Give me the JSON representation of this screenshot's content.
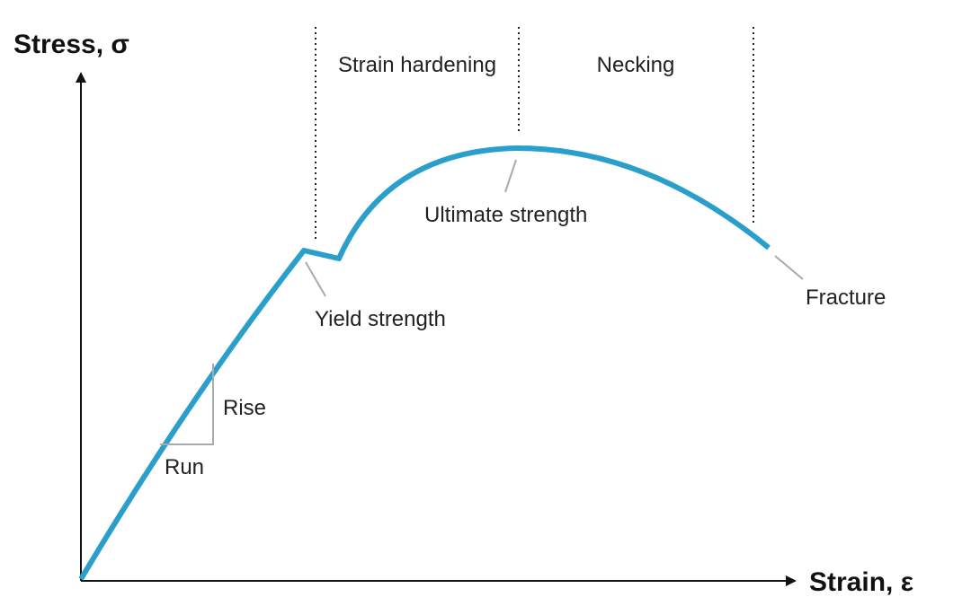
{
  "axes": {
    "y_label": "Stress, σ",
    "x_label": "Strain, ε"
  },
  "regions": [
    {
      "label": "Strain hardening"
    },
    {
      "label": "Necking"
    }
  ],
  "annotations": {
    "yield": "Yield strength",
    "ultimate": "Ultimate strength",
    "fracture": "Fracture",
    "rise": "Rise",
    "run": "Run"
  }
}
